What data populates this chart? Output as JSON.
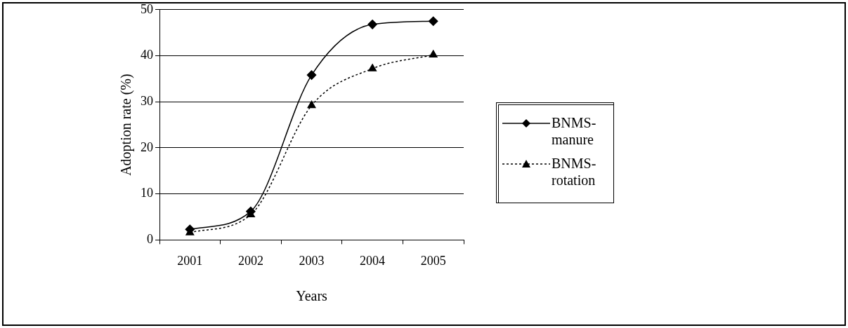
{
  "chart_data": {
    "type": "line",
    "xlabel": "Years",
    "ylabel": "Adoption rate (%)",
    "categories": [
      "2001",
      "2002",
      "2003",
      "2004",
      "2005"
    ],
    "series": [
      {
        "name": "BNMS-manure",
        "color": "#000000",
        "values": [
          2.3,
          6.2,
          35.8,
          46.8,
          47.5
        ],
        "marker": "diamond",
        "line_style": "solid"
      },
      {
        "name": "BNMS-rotation",
        "color": "#000000",
        "values": [
          1.6,
          5.5,
          29.2,
          37.2,
          40.2
        ],
        "marker": "triangle",
        "line_style": "dotted"
      }
    ],
    "ylim": [
      0,
      50
    ],
    "yticks": [
      0,
      10,
      20,
      30,
      40,
      50
    ],
    "grid": "y",
    "legend": "right"
  }
}
